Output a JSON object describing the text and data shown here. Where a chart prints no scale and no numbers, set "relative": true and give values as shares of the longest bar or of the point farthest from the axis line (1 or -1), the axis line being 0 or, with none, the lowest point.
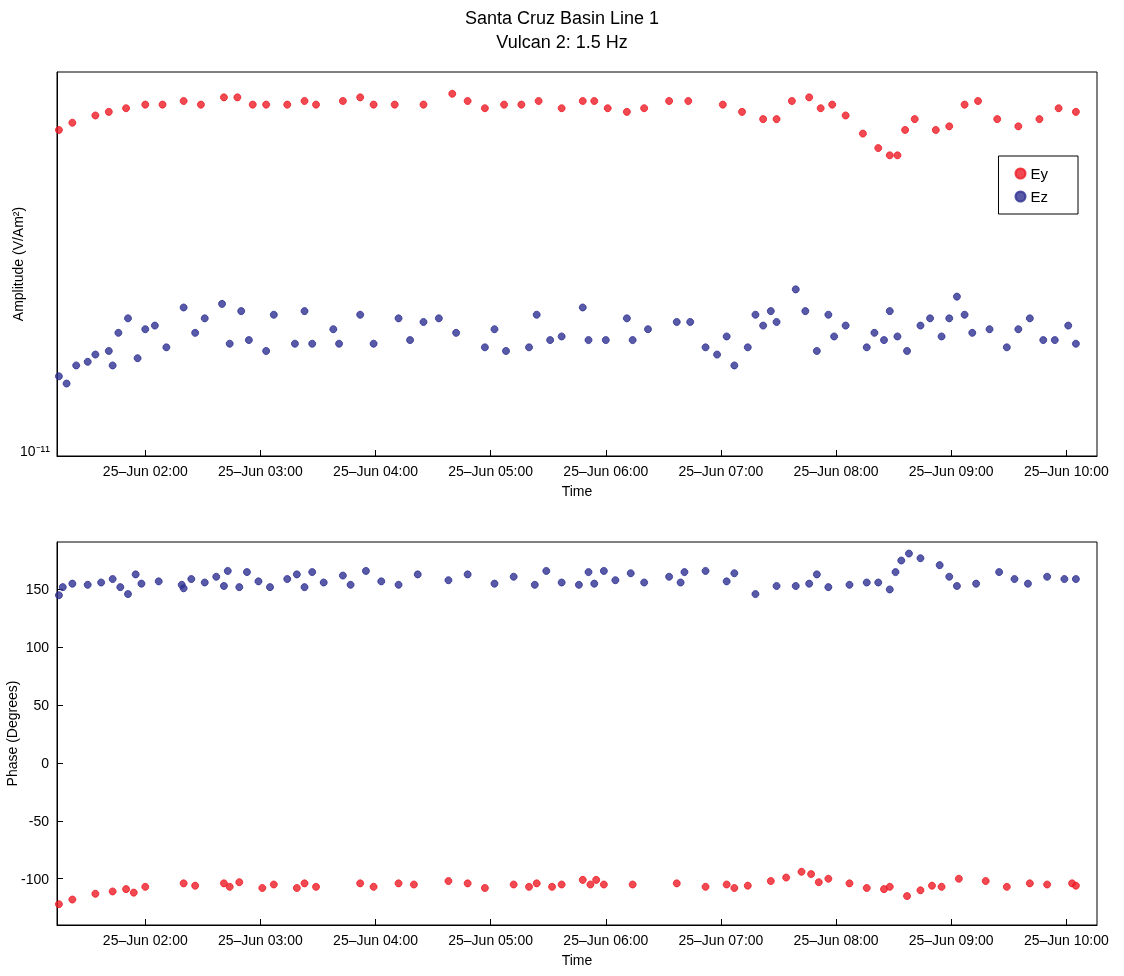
{
  "chart_data": [
    {
      "type": "scatter",
      "title": "Santa Cruz Basin Line 1",
      "subtitle": "Vulcan 2: 1.5 Hz",
      "xlabel": "Time",
      "ylabel": "Amplitude (V/Am²)",
      "relative": true,
      "annotations": [
        "10⁻¹¹"
      ],
      "legend": "top right",
      "grid": false,
      "marker": "circle",
      "xlim": [
        "--06-25T01:14",
        "--06-25T10:16"
      ],
      "xticks": [
        {
          "value": "--06-25T02:00",
          "label": "25–Jun 02:00"
        },
        {
          "value": "--06-25T03:00",
          "label": "25–Jun 03:00"
        },
        {
          "value": "--06-25T04:00",
          "label": "25–Jun 04:00"
        },
        {
          "value": "--06-25T05:00",
          "label": "25–Jun 05:00"
        },
        {
          "value": "--06-25T06:00",
          "label": "25–Jun 06:00"
        },
        {
          "value": "--06-25T07:00",
          "label": "25–Jun 07:00"
        },
        {
          "value": "--06-25T08:00",
          "label": "25–Jun 08:00"
        },
        {
          "value": "--06-25T09:00",
          "label": "25–Jun 09:00"
        },
        {
          "value": "--06-25T10:00",
          "label": "25–Jun 10:00"
        }
      ],
      "series": [
        {
          "name": "Ey",
          "color": "#ee1c25",
          "x": [
            "--06-25T01:15",
            "--06-25T01:22",
            "--06-25T01:34",
            "--06-25T01:41",
            "--06-25T01:50",
            "--06-25T02:00",
            "--06-25T02:09",
            "--06-25T02:20",
            "--06-25T02:29",
            "--06-25T02:41",
            "--06-25T02:48",
            "--06-25T02:56",
            "--06-25T03:03",
            "--06-25T03:14",
            "--06-25T03:23",
            "--06-25T03:29",
            "--06-25T03:43",
            "--06-25T03:52",
            "--06-25T03:59",
            "--06-25T04:10",
            "--06-25T04:25",
            "--06-25T04:40",
            "--06-25T04:48",
            "--06-25T04:57",
            "--06-25T05:07",
            "--06-25T05:16",
            "--06-25T05:25",
            "--06-25T05:37",
            "--06-25T05:48",
            "--06-25T05:54",
            "--06-25T06:01",
            "--06-25T06:11",
            "--06-25T06:20",
            "--06-25T06:33",
            "--06-25T06:43",
            "--06-25T07:01",
            "--06-25T07:11",
            "--06-25T07:22",
            "--06-25T07:29",
            "--06-25T07:37",
            "--06-25T07:46",
            "--06-25T07:52",
            "--06-25T07:58",
            "--06-25T08:05",
            "--06-25T08:14",
            "--06-25T08:22",
            "--06-25T08:28",
            "--06-25T08:32",
            "--06-25T08:36",
            "--06-25T08:41",
            "--06-25T08:52",
            "--06-25T08:59",
            "--06-25T09:07",
            "--06-25T09:14",
            "--06-25T09:24",
            "--06-25T09:35",
            "--06-25T09:46",
            "--06-25T09:56",
            "--06-25T10:05"
          ],
          "values": [
            0.9,
            0.92,
            0.94,
            0.95,
            0.96,
            0.97,
            0.97,
            0.98,
            0.97,
            0.99,
            0.99,
            0.97,
            0.97,
            0.97,
            0.98,
            0.97,
            0.98,
            0.99,
            0.97,
            0.97,
            0.97,
            1.0,
            0.98,
            0.96,
            0.97,
            0.97,
            0.98,
            0.96,
            0.98,
            0.98,
            0.96,
            0.95,
            0.96,
            0.98,
            0.98,
            0.97,
            0.95,
            0.93,
            0.93,
            0.98,
            0.99,
            0.96,
            0.97,
            0.94,
            0.89,
            0.85,
            0.83,
            0.83,
            0.9,
            0.93,
            0.9,
            0.91,
            0.97,
            0.98,
            0.93,
            0.91,
            0.93,
            0.96,
            0.95
          ]
        },
        {
          "name": "Ez",
          "color": "#2e3192",
          "x": [
            "--06-25T01:15",
            "--06-25T01:19",
            "--06-25T01:24",
            "--06-25T01:30",
            "--06-25T01:34",
            "--06-25T01:41",
            "--06-25T01:43",
            "--06-25T01:46",
            "--06-25T01:51",
            "--06-25T01:56",
            "--06-25T02:00",
            "--06-25T02:05",
            "--06-25T02:11",
            "--06-25T02:20",
            "--06-25T02:26",
            "--06-25T02:31",
            "--06-25T02:40",
            "--06-25T02:44",
            "--06-25T02:50",
            "--06-25T02:54",
            "--06-25T03:03",
            "--06-25T03:07",
            "--06-25T03:18",
            "--06-25T03:23",
            "--06-25T03:27",
            "--06-25T03:38",
            "--06-25T03:41",
            "--06-25T03:52",
            "--06-25T03:59",
            "--06-25T04:12",
            "--06-25T04:18",
            "--06-25T04:25",
            "--06-25T04:33",
            "--06-25T04:42",
            "--06-25T04:57",
            "--06-25T05:02",
            "--06-25T05:08",
            "--06-25T05:20",
            "--06-25T05:24",
            "--06-25T05:31",
            "--06-25T05:37",
            "--06-25T05:48",
            "--06-25T05:51",
            "--06-25T06:00",
            "--06-25T06:11",
            "--06-25T06:14",
            "--06-25T06:22",
            "--06-25T06:37",
            "--06-25T06:44",
            "--06-25T06:52",
            "--06-25T06:58",
            "--06-25T07:03",
            "--06-25T07:07",
            "--06-25T07:14",
            "--06-25T07:18",
            "--06-25T07:22",
            "--06-25T07:26",
            "--06-25T07:29",
            "--06-25T07:39",
            "--06-25T07:44",
            "--06-25T07:50",
            "--06-25T07:56",
            "--06-25T07:59",
            "--06-25T08:05",
            "--06-25T08:16",
            "--06-25T08:20",
            "--06-25T08:25",
            "--06-25T08:28",
            "--06-25T08:32",
            "--06-25T08:37",
            "--06-25T08:44",
            "--06-25T08:49",
            "--06-25T08:55",
            "--06-25T08:59",
            "--06-25T09:03",
            "--06-25T09:07",
            "--06-25T09:11",
            "--06-25T09:20",
            "--06-25T09:29",
            "--06-25T09:35",
            "--06-25T09:41",
            "--06-25T09:48",
            "--06-25T09:54",
            "--06-25T10:01",
            "--06-25T10:05"
          ],
          "values": [
            0.22,
            0.2,
            0.25,
            0.26,
            0.28,
            0.29,
            0.25,
            0.34,
            0.38,
            0.27,
            0.35,
            0.36,
            0.3,
            0.41,
            0.34,
            0.38,
            0.42,
            0.31,
            0.4,
            0.32,
            0.29,
            0.39,
            0.31,
            0.4,
            0.31,
            0.35,
            0.31,
            0.39,
            0.31,
            0.38,
            0.32,
            0.37,
            0.38,
            0.34,
            0.3,
            0.35,
            0.29,
            0.3,
            0.39,
            0.32,
            0.33,
            0.41,
            0.32,
            0.32,
            0.38,
            0.32,
            0.35,
            0.37,
            0.37,
            0.3,
            0.28,
            0.33,
            0.25,
            0.3,
            0.39,
            0.36,
            0.4,
            0.37,
            0.46,
            0.4,
            0.29,
            0.39,
            0.33,
            0.36,
            0.3,
            0.34,
            0.32,
            0.4,
            0.33,
            0.29,
            0.36,
            0.38,
            0.33,
            0.38,
            0.44,
            0.39,
            0.34,
            0.35,
            0.3,
            0.35,
            0.38,
            0.32,
            0.32,
            0.36,
            0.31
          ]
        }
      ]
    },
    {
      "type": "scatter",
      "xlabel": "Time",
      "ylabel": "Phase (Degrees)",
      "grid": false,
      "marker": "circle",
      "xlim": [
        "--06-25T01:14",
        "--06-25T10:16"
      ],
      "xticks": [
        {
          "value": "--06-25T02:00",
          "label": "25–Jun 02:00"
        },
        {
          "value": "--06-25T03:00",
          "label": "25–Jun 03:00"
        },
        {
          "value": "--06-25T04:00",
          "label": "25–Jun 04:00"
        },
        {
          "value": "--06-25T05:00",
          "label": "25–Jun 05:00"
        },
        {
          "value": "--06-25T06:00",
          "label": "25–Jun 06:00"
        },
        {
          "value": "--06-25T07:00",
          "label": "25–Jun 07:00"
        },
        {
          "value": "--06-25T08:00",
          "label": "25–Jun 08:00"
        },
        {
          "value": "--06-25T09:00",
          "label": "25–Jun 09:00"
        },
        {
          "value": "--06-25T10:00",
          "label": "25–Jun 10:00"
        }
      ],
      "ylim": [
        -140,
        191
      ],
      "yticks": [
        -100,
        -50,
        0,
        50,
        100,
        150
      ],
      "series": [
        {
          "color": "#2e3192",
          "x": [
            "--06-25T01:15",
            "--06-25T01:17",
            "--06-25T01:22",
            "--06-25T01:30",
            "--06-25T01:37",
            "--06-25T01:43",
            "--06-25T01:47",
            "--06-25T01:51",
            "--06-25T01:55",
            "--06-25T01:58",
            "--06-25T02:07",
            "--06-25T02:19",
            "--06-25T02:20",
            "--06-25T02:24",
            "--06-25T02:31",
            "--06-25T02:37",
            "--06-25T02:41",
            "--06-25T02:43",
            "--06-25T02:49",
            "--06-25T02:53",
            "--06-25T02:59",
            "--06-25T03:05",
            "--06-25T03:14",
            "--06-25T03:19",
            "--06-25T03:23",
            "--06-25T03:27",
            "--06-25T03:33",
            "--06-25T03:43",
            "--06-25T03:47",
            "--06-25T03:55",
            "--06-25T04:03",
            "--06-25T04:12",
            "--06-25T04:22",
            "--06-25T04:38",
            "--06-25T04:48",
            "--06-25T05:02",
            "--06-25T05:12",
            "--06-25T05:23",
            "--06-25T05:29",
            "--06-25T05:37",
            "--06-25T05:46",
            "--06-25T05:51",
            "--06-25T05:54",
            "--06-25T05:59",
            "--06-25T06:05",
            "--06-25T06:13",
            "--06-25T06:20",
            "--06-25T06:33",
            "--06-25T06:39",
            "--06-25T06:41",
            "--06-25T06:52",
            "--06-25T07:03",
            "--06-25T07:07",
            "--06-25T07:18",
            "--06-25T07:29",
            "--06-25T07:39",
            "--06-25T07:46",
            "--06-25T07:50",
            "--06-25T07:56",
            "--06-25T08:07",
            "--06-25T08:16",
            "--06-25T08:22",
            "--06-25T08:28",
            "--06-25T08:31",
            "--06-25T08:34",
            "--06-25T08:38",
            "--06-25T08:44",
            "--06-25T08:54",
            "--06-25T08:59",
            "--06-25T09:03",
            "--06-25T09:13",
            "--06-25T09:25",
            "--06-25T09:33",
            "--06-25T09:40",
            "--06-25T09:50",
            "--06-25T09:59",
            "--06-25T10:05"
          ],
          "values": [
            145,
            152,
            155,
            154,
            156,
            159,
            152,
            146,
            163,
            155,
            157,
            154,
            151,
            159,
            156,
            161,
            153,
            166,
            152,
            165,
            157,
            152,
            159,
            163,
            152,
            165,
            156,
            162,
            154,
            166,
            157,
            154,
            163,
            158,
            163,
            155,
            161,
            154,
            166,
            156,
            154,
            165,
            155,
            166,
            158,
            164,
            156,
            161,
            156,
            165,
            166,
            157,
            164,
            146,
            153,
            153,
            155,
            163,
            152,
            154,
            156,
            156,
            150,
            165,
            175,
            181,
            177,
            171,
            161,
            153,
            155,
            165,
            159,
            155,
            161,
            159,
            159
          ]
        },
        {
          "color": "#ee1c25",
          "x": [
            "--06-25T01:15",
            "--06-25T01:22",
            "--06-25T01:34",
            "--06-25T01:43",
            "--06-25T01:50",
            "--06-25T01:54",
            "--06-25T02:00",
            "--06-25T02:20",
            "--06-25T02:26",
            "--06-25T02:41",
            "--06-25T02:44",
            "--06-25T02:49",
            "--06-25T03:01",
            "--06-25T03:07",
            "--06-25T03:19",
            "--06-25T03:23",
            "--06-25T03:29",
            "--06-25T03:52",
            "--06-25T03:59",
            "--06-25T04:12",
            "--06-25T04:20",
            "--06-25T04:38",
            "--06-25T04:48",
            "--06-25T04:57",
            "--06-25T05:12",
            "--06-25T05:20",
            "--06-25T05:24",
            "--06-25T05:32",
            "--06-25T05:37",
            "--06-25T05:48",
            "--06-25T05:52",
            "--06-25T05:55",
            "--06-25T05:59",
            "--06-25T06:14",
            "--06-25T06:37",
            "--06-25T06:52",
            "--06-25T07:03",
            "--06-25T07:07",
            "--06-25T07:14",
            "--06-25T07:26",
            "--06-25T07:34",
            "--06-25T07:42",
            "--06-25T07:47",
            "--06-25T07:51",
            "--06-25T07:56",
            "--06-25T08:07",
            "--06-25T08:16",
            "--06-25T08:25",
            "--06-25T08:28",
            "--06-25T08:37",
            "--06-25T08:44",
            "--06-25T08:50",
            "--06-25T08:55",
            "--06-25T09:04",
            "--06-25T09:18",
            "--06-25T09:29",
            "--06-25T09:41",
            "--06-25T09:50",
            "--06-25T10:03",
            "--06-25T10:05"
          ],
          "values": [
            -122,
            -118,
            -113,
            -111,
            -109,
            -112,
            -107,
            -104,
            -106,
            -104,
            -107,
            -103,
            -108,
            -105,
            -108,
            -104,
            -107,
            -104,
            -107,
            -104,
            -105,
            -102,
            -104,
            -108,
            -105,
            -107,
            -104,
            -107,
            -105,
            -101,
            -105,
            -101,
            -105,
            -105,
            -104,
            -107,
            -105,
            -108,
            -106,
            -102,
            -99,
            -94,
            -96,
            -103,
            -100,
            -104,
            -108,
            -109,
            -107,
            -115,
            -110,
            -106,
            -107,
            -100,
            -102,
            -107,
            -104,
            -105,
            -104,
            -106
          ]
        }
      ]
    }
  ]
}
